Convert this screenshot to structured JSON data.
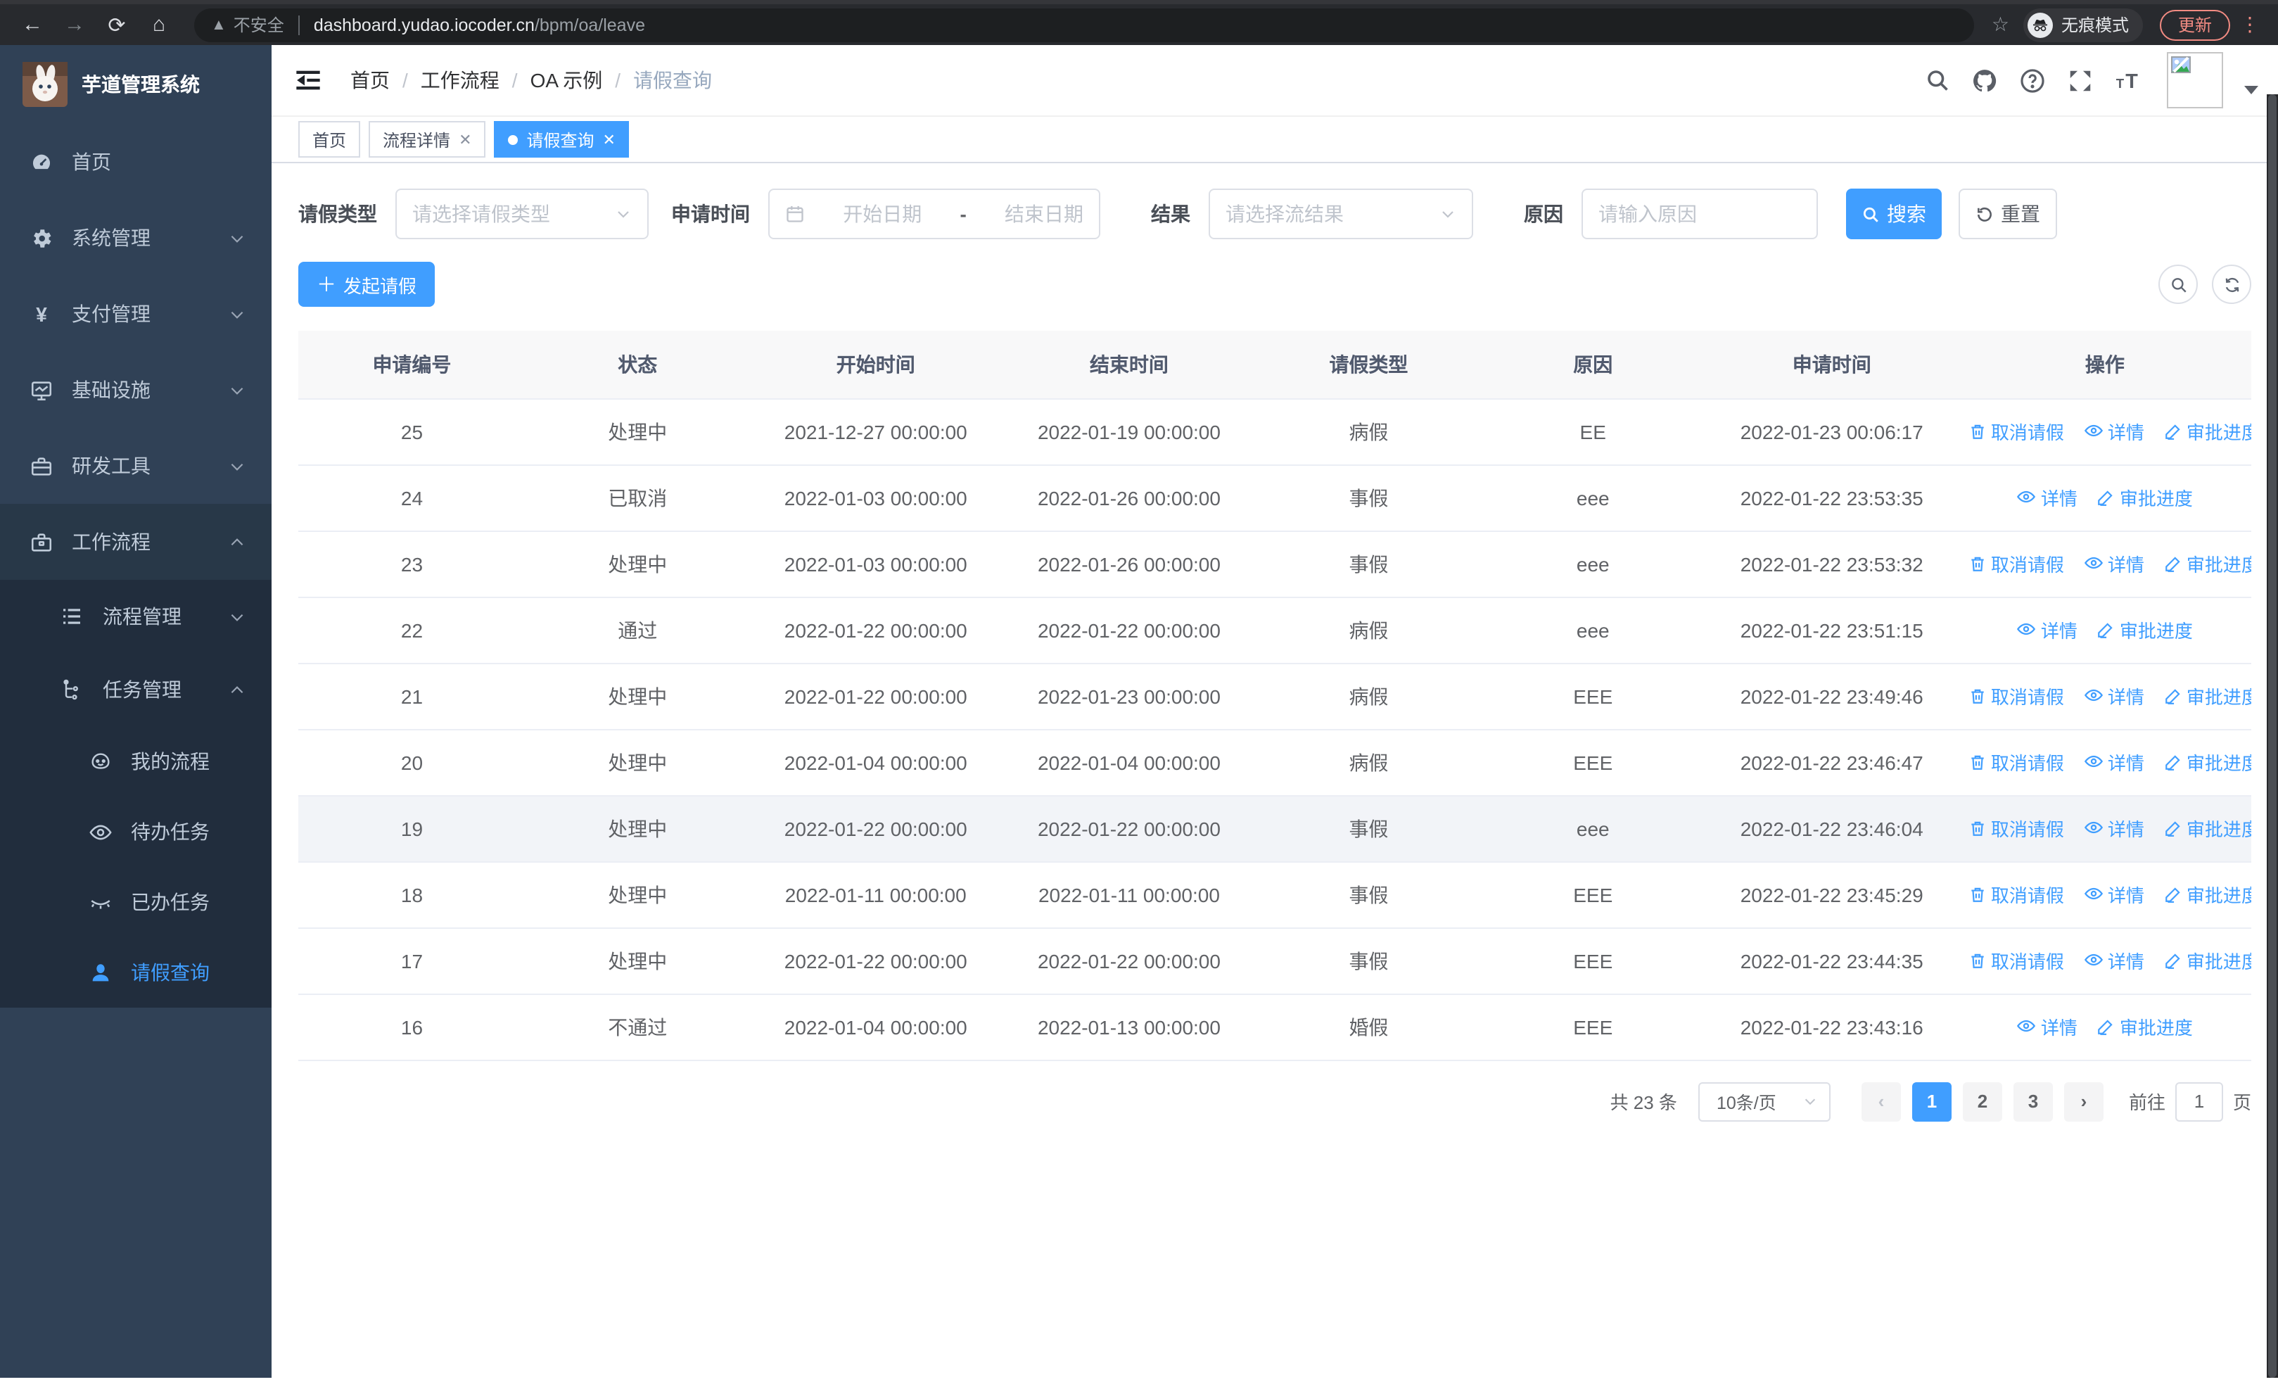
{
  "colors": {
    "primary": "#409eff",
    "update_accent": "#f28b82"
  },
  "browser": {
    "security_label": "不安全",
    "url_host": "dashboard.yudao.iocoder.cn",
    "url_path": "/bpm/oa/leave",
    "incognito_label": "无痕模式",
    "update_label": "更新"
  },
  "sidebar": {
    "logo_title": "芋道管理系统",
    "items": [
      {
        "label": "首页",
        "icon": "dashboard-icon",
        "level": 1,
        "arrow": "",
        "active": false
      },
      {
        "label": "系统管理",
        "icon": "gear-icon",
        "level": 1,
        "arrow": "down",
        "active": false
      },
      {
        "label": "支付管理",
        "icon": "yen-icon",
        "level": 1,
        "arrow": "down",
        "active": false
      },
      {
        "label": "基础设施",
        "icon": "monitor-icon",
        "level": 1,
        "arrow": "down",
        "active": false
      },
      {
        "label": "研发工具",
        "icon": "toolbox-icon",
        "level": 1,
        "arrow": "down",
        "active": false
      },
      {
        "label": "工作流程",
        "icon": "briefcase-icon",
        "level": 1,
        "arrow": "up",
        "active": false,
        "expanded": true
      },
      {
        "label": "流程管理",
        "icon": "list-icon",
        "level": 2,
        "arrow": "down",
        "active": false
      },
      {
        "label": "任务管理",
        "icon": "tree-icon",
        "level": 2,
        "arrow": "up",
        "active": false,
        "expanded": true
      },
      {
        "label": "我的流程",
        "icon": "face-icon",
        "level": 3,
        "arrow": "",
        "active": false
      },
      {
        "label": "待办任务",
        "icon": "eye-icon",
        "level": 3,
        "arrow": "",
        "active": false
      },
      {
        "label": "已办任务",
        "icon": "eye-closed-icon",
        "level": 3,
        "arrow": "",
        "active": false
      },
      {
        "label": "请假查询",
        "icon": "user-icon",
        "level": 3,
        "arrow": "",
        "active": true
      }
    ]
  },
  "header": {
    "breadcrumb": [
      "首页",
      "工作流程",
      "OA 示例",
      "请假查询"
    ]
  },
  "tags": [
    {
      "label": "首页",
      "closable": false,
      "active": false
    },
    {
      "label": "流程详情",
      "closable": true,
      "active": false
    },
    {
      "label": "请假查询",
      "closable": true,
      "active": true
    }
  ],
  "filters": {
    "leave_type_label": "请假类型",
    "leave_type_placeholder": "请选择请假类型",
    "apply_time_label": "申请时间",
    "start_placeholder": "开始日期",
    "range_separator": "-",
    "end_placeholder": "结束日期",
    "result_label": "结果",
    "result_placeholder": "请选择流结果",
    "reason_label": "原因",
    "reason_placeholder": "请输入原因",
    "search_label": "搜索",
    "reset_label": "重置"
  },
  "toolbar": {
    "create_label": "发起请假"
  },
  "table": {
    "columns": [
      "申请编号",
      "状态",
      "开始时间",
      "结束时间",
      "请假类型",
      "原因",
      "申请时间",
      "操作"
    ],
    "action_labels": {
      "cancel": "取消请假",
      "detail": "详情",
      "progress": "审批进度"
    },
    "rows": [
      {
        "id": "25",
        "status": "处理中",
        "start": "2021-12-27 00:00:00",
        "end": "2022-01-19 00:00:00",
        "type": "病假",
        "reason": "EE",
        "apply": "2022-01-23 00:06:17",
        "actions": [
          "cancel",
          "detail",
          "progress"
        ],
        "highlighted": false
      },
      {
        "id": "24",
        "status": "已取消",
        "start": "2022-01-03 00:00:00",
        "end": "2022-01-26 00:00:00",
        "type": "事假",
        "reason": "eee",
        "apply": "2022-01-22 23:53:35",
        "actions": [
          "detail",
          "progress"
        ],
        "highlighted": false
      },
      {
        "id": "23",
        "status": "处理中",
        "start": "2022-01-03 00:00:00",
        "end": "2022-01-26 00:00:00",
        "type": "事假",
        "reason": "eee",
        "apply": "2022-01-22 23:53:32",
        "actions": [
          "cancel",
          "detail",
          "progress"
        ],
        "highlighted": false
      },
      {
        "id": "22",
        "status": "通过",
        "start": "2022-01-22 00:00:00",
        "end": "2022-01-22 00:00:00",
        "type": "病假",
        "reason": "eee",
        "apply": "2022-01-22 23:51:15",
        "actions": [
          "detail",
          "progress"
        ],
        "highlighted": false
      },
      {
        "id": "21",
        "status": "处理中",
        "start": "2022-01-22 00:00:00",
        "end": "2022-01-23 00:00:00",
        "type": "病假",
        "reason": "EEE",
        "apply": "2022-01-22 23:49:46",
        "actions": [
          "cancel",
          "detail",
          "progress"
        ],
        "highlighted": false
      },
      {
        "id": "20",
        "status": "处理中",
        "start": "2022-01-04 00:00:00",
        "end": "2022-01-04 00:00:00",
        "type": "病假",
        "reason": "EEE",
        "apply": "2022-01-22 23:46:47",
        "actions": [
          "cancel",
          "detail",
          "progress"
        ],
        "highlighted": false
      },
      {
        "id": "19",
        "status": "处理中",
        "start": "2022-01-22 00:00:00",
        "end": "2022-01-22 00:00:00",
        "type": "事假",
        "reason": "eee",
        "apply": "2022-01-22 23:46:04",
        "actions": [
          "cancel",
          "detail",
          "progress"
        ],
        "highlighted": true
      },
      {
        "id": "18",
        "status": "处理中",
        "start": "2022-01-11 00:00:00",
        "end": "2022-01-11 00:00:00",
        "type": "事假",
        "reason": "EEE",
        "apply": "2022-01-22 23:45:29",
        "actions": [
          "cancel",
          "detail",
          "progress"
        ],
        "highlighted": false
      },
      {
        "id": "17",
        "status": "处理中",
        "start": "2022-01-22 00:00:00",
        "end": "2022-01-22 00:00:00",
        "type": "事假",
        "reason": "EEE",
        "apply": "2022-01-22 23:44:35",
        "actions": [
          "cancel",
          "detail",
          "progress"
        ],
        "highlighted": false
      },
      {
        "id": "16",
        "status": "不通过",
        "start": "2022-01-04 00:00:00",
        "end": "2022-01-13 00:00:00",
        "type": "婚假",
        "reason": "EEE",
        "apply": "2022-01-22 23:43:16",
        "actions": [
          "detail",
          "progress"
        ],
        "highlighted": false
      }
    ]
  },
  "pagination": {
    "total_label": "共 23 条",
    "page_size_label": "10条/页",
    "pages": [
      "1",
      "2",
      "3"
    ],
    "current_page": "1",
    "goto_label": "前往",
    "goto_value": "1",
    "page_unit": "页"
  }
}
